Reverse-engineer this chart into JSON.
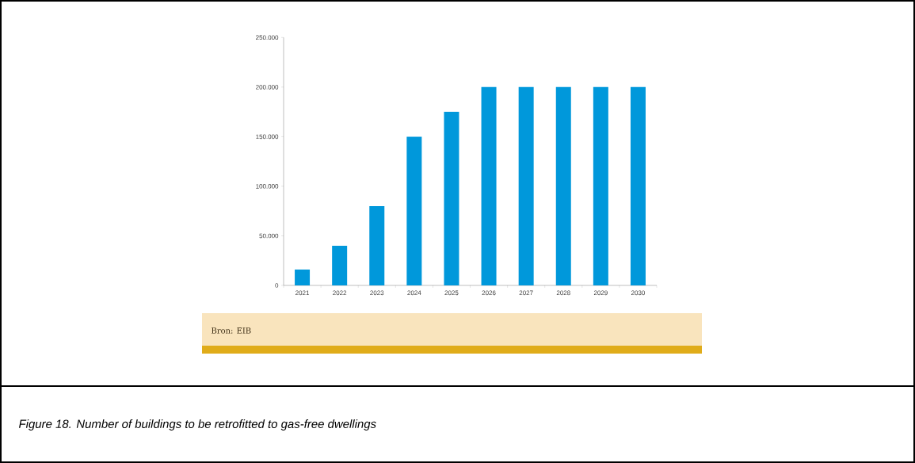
{
  "chart_data": {
    "type": "bar",
    "categories": [
      "2021",
      "2022",
      "2023",
      "2024",
      "2025",
      "2026",
      "2027",
      "2028",
      "2029",
      "2030"
    ],
    "values": [
      16000,
      40000,
      80000,
      150000,
      175000,
      200000,
      200000,
      200000,
      200000,
      200000
    ],
    "color": "#0098db",
    "ylim": [
      0,
      250000
    ],
    "yticks": [
      {
        "value": 0,
        "label": "0"
      },
      {
        "value": 50000,
        "label": "50.000"
      },
      {
        "value": 100000,
        "label": "100.000"
      },
      {
        "value": 150000,
        "label": "150.000"
      },
      {
        "value": 200000,
        "label": "200.000"
      },
      {
        "value": 250000,
        "label": "250.000"
      }
    ],
    "grid": false,
    "annotations": [
      "Bron: EIB",
      "Figure 18. Number of buildings to be retrofitted to gas-free dwellings"
    ]
  }
}
